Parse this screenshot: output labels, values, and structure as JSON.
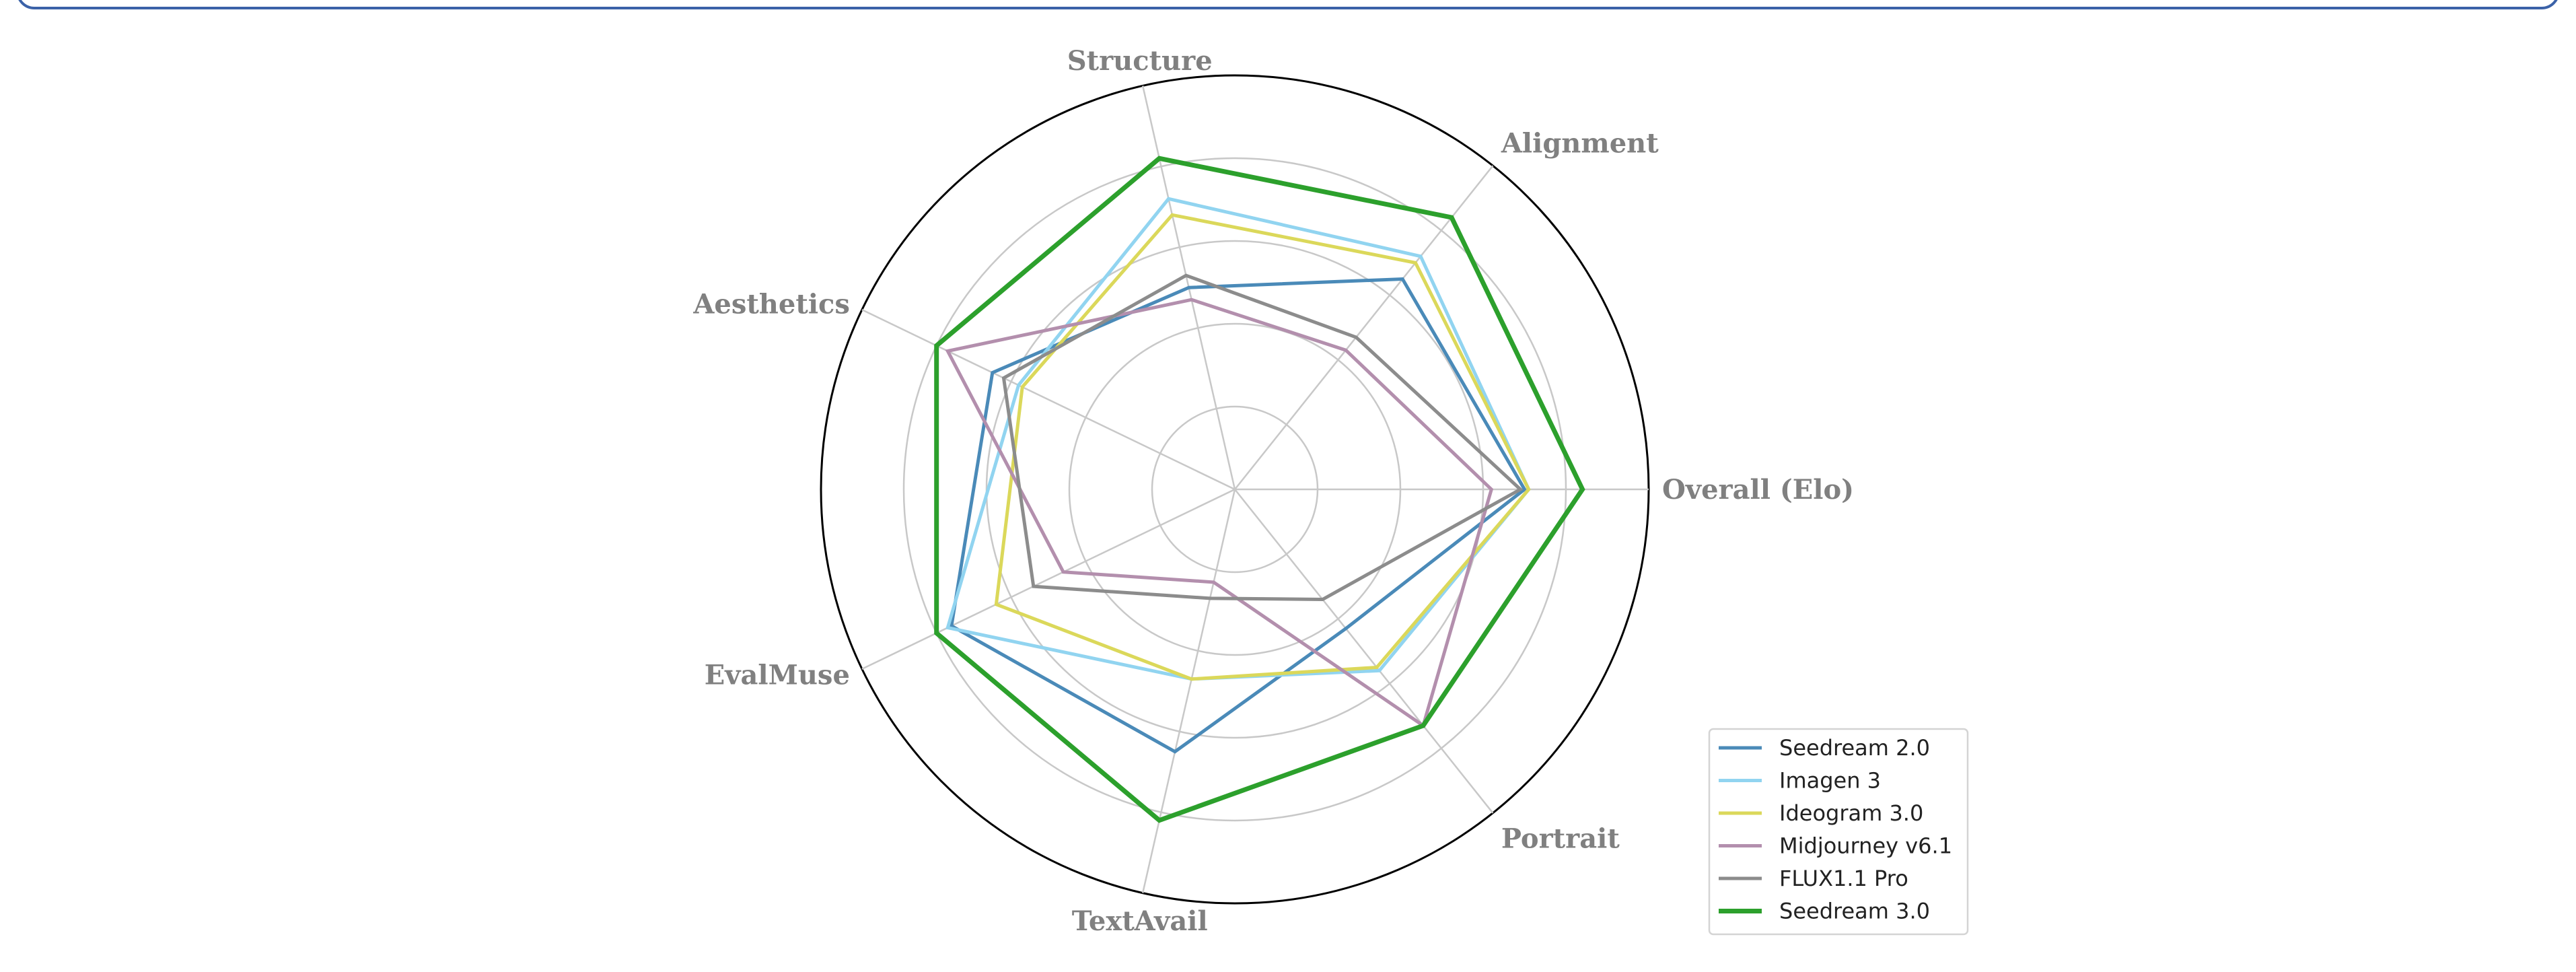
{
  "chart_data": {
    "type": "radar",
    "axes": [
      "Overall (Elo)",
      "Alignment",
      "Structure",
      "Aesthetics",
      "EvalMuse",
      "TextAvail",
      "Portrait"
    ],
    "rlim": [
      0,
      1
    ],
    "rings": [
      0.2,
      0.4,
      0.6,
      0.8,
      1.0
    ],
    "grid": true,
    "legend_position": "lower-right",
    "series": [
      {
        "name": "Seedream 2.0",
        "color": "#4a8ab8",
        "values": [
          0.7,
          0.65,
          0.5,
          0.65,
          0.76,
          0.65,
          0.43
        ]
      },
      {
        "name": "Imagen 3",
        "color": "#91d4f0",
        "values": [
          0.71,
          0.72,
          0.72,
          0.58,
          0.77,
          0.47,
          0.56
        ]
      },
      {
        "name": "Ideogram 3.0",
        "color": "#dbd85a",
        "values": [
          0.71,
          0.7,
          0.68,
          0.57,
          0.64,
          0.47,
          0.55
        ]
      },
      {
        "name": "Midjourney v6.1",
        "color": "#b38fad",
        "values": [
          0.62,
          0.43,
          0.47,
          0.77,
          0.46,
          0.23,
          0.73
        ]
      },
      {
        "name": "FLUX1.1 Pro",
        "color": "#8c8c8c",
        "values": [
          0.69,
          0.47,
          0.53,
          0.62,
          0.54,
          0.27,
          0.34
        ]
      },
      {
        "name": "Seedream 3.0",
        "color": "#2ca02c",
        "values": [
          0.84,
          0.84,
          0.82,
          0.8,
          0.8,
          0.82,
          0.73
        ]
      }
    ]
  }
}
